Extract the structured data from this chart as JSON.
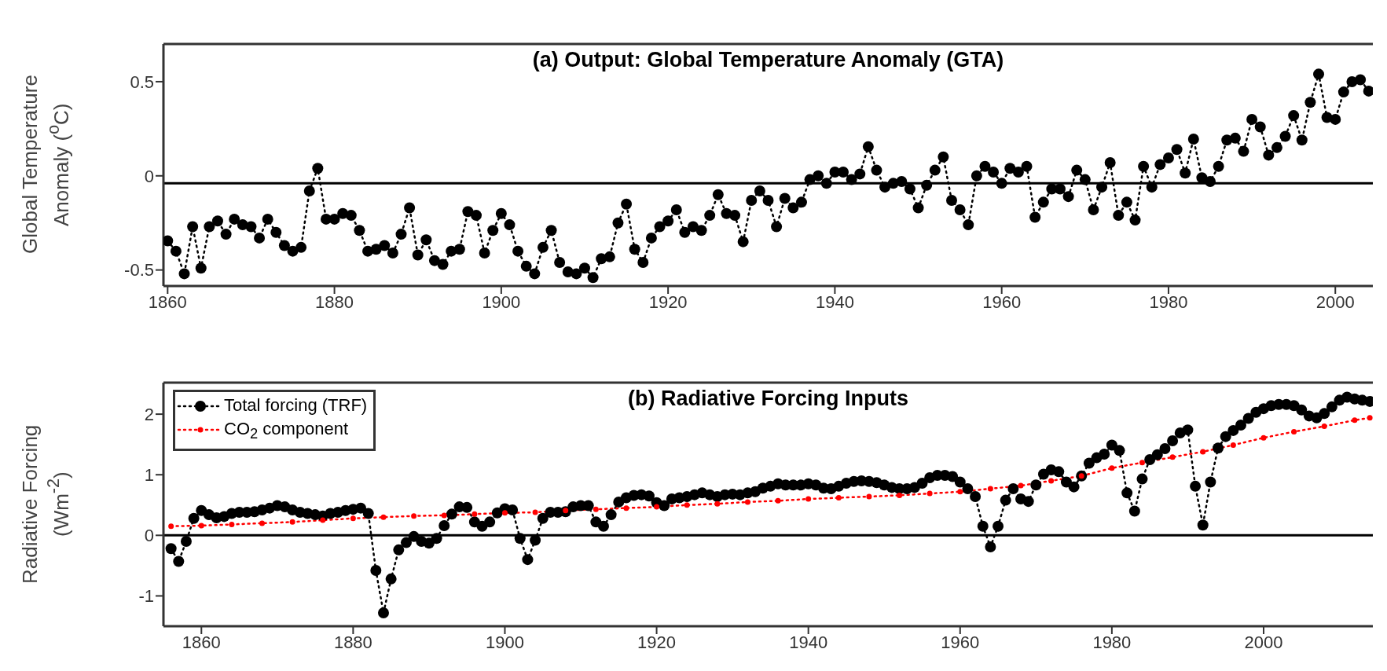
{
  "chart_data": [
    {
      "type": "line",
      "title": "(a) Output: Global Temperature Anomaly (GTA)",
      "ylabel": "Global Temperature Anomaly ($^{o}$C)",
      "color": "#000000",
      "marker": "circle",
      "line_style": "dotted",
      "xlim": [
        1859.5,
        2004.5
      ],
      "xticks": [
        1860,
        1880,
        1900,
        1920,
        1940,
        1960,
        1980,
        2000
      ],
      "ylim": [
        -0.585,
        0.7
      ],
      "yticks": [
        -0.5,
        0,
        0.5
      ],
      "legend": false,
      "ref_lines": [
        {
          "axis": "y",
          "value": -0.04,
          "color": "#000000"
        }
      ],
      "x": [
        1860,
        1861,
        1862,
        1863,
        1864,
        1865,
        1866,
        1867,
        1868,
        1869,
        1870,
        1871,
        1872,
        1873,
        1874,
        1875,
        1876,
        1877,
        1878,
        1879,
        1880,
        1881,
        1882,
        1883,
        1884,
        1885,
        1886,
        1887,
        1888,
        1889,
        1890,
        1891,
        1892,
        1893,
        1894,
        1895,
        1896,
        1897,
        1898,
        1899,
        1900,
        1901,
        1902,
        1903,
        1904,
        1905,
        1906,
        1907,
        1908,
        1909,
        1910,
        1911,
        1912,
        1913,
        1914,
        1915,
        1916,
        1917,
        1918,
        1919,
        1920,
        1921,
        1922,
        1923,
        1924,
        1925,
        1926,
        1927,
        1928,
        1929,
        1930,
        1931,
        1932,
        1933,
        1934,
        1935,
        1936,
        1937,
        1938,
        1939,
        1940,
        1941,
        1942,
        1943,
        1944,
        1945,
        1946,
        1947,
        1948,
        1949,
        1950,
        1951,
        1952,
        1953,
        1954,
        1955,
        1956,
        1957,
        1958,
        1959,
        1960,
        1961,
        1962,
        1963,
        1964,
        1965,
        1966,
        1967,
        1968,
        1969,
        1970,
        1971,
        1972,
        1973,
        1974,
        1975,
        1976,
        1977,
        1978,
        1979,
        1980,
        1981,
        1982,
        1983,
        1984,
        1985,
        1986,
        1987,
        1988,
        1989,
        1990,
        1991,
        1992,
        1993,
        1994,
        1995,
        1996,
        1997,
        1998,
        1999,
        2000,
        2001,
        2002,
        2003,
        2004
      ],
      "values": [
        -0.345,
        -0.4,
        -0.52,
        -0.27,
        -0.49,
        -0.27,
        -0.24,
        -0.31,
        -0.23,
        -0.26,
        -0.27,
        -0.33,
        -0.23,
        -0.3,
        -0.37,
        -0.4,
        -0.38,
        -0.08,
        0.04,
        -0.23,
        -0.23,
        -0.2,
        -0.21,
        -0.29,
        -0.4,
        -0.39,
        -0.37,
        -0.41,
        -0.31,
        -0.17,
        -0.42,
        -0.34,
        -0.45,
        -0.47,
        -0.4,
        -0.39,
        -0.19,
        -0.21,
        -0.41,
        -0.29,
        -0.2,
        -0.26,
        -0.4,
        -0.48,
        -0.52,
        -0.38,
        -0.29,
        -0.46,
        -0.51,
        -0.52,
        -0.49,
        -0.54,
        -0.44,
        -0.43,
        -0.25,
        -0.15,
        -0.39,
        -0.46,
        -0.33,
        -0.27,
        -0.24,
        -0.18,
        -0.3,
        -0.27,
        -0.29,
        -0.21,
        -0.1,
        -0.2,
        -0.21,
        -0.35,
        -0.13,
        -0.08,
        -0.13,
        -0.27,
        -0.12,
        -0.17,
        -0.14,
        -0.02,
        0.0,
        -0.04,
        0.02,
        0.02,
        -0.02,
        0.01,
        0.155,
        0.03,
        -0.06,
        -0.04,
        -0.03,
        -0.07,
        -0.17,
        -0.05,
        0.03,
        0.1,
        -0.13,
        -0.18,
        -0.26,
        0.0,
        0.05,
        0.02,
        -0.04,
        0.04,
        0.02,
        0.05,
        -0.22,
        -0.14,
        -0.07,
        -0.07,
        -0.11,
        0.03,
        -0.02,
        -0.18,
        -0.06,
        0.07,
        -0.21,
        -0.14,
        -0.235,
        0.05,
        -0.06,
        0.06,
        0.095,
        0.14,
        0.015,
        0.195,
        -0.01,
        -0.03,
        0.05,
        0.19,
        0.2,
        0.13,
        0.3,
        0.26,
        0.11,
        0.15,
        0.21,
        0.32,
        0.19,
        0.39,
        0.54,
        0.31,
        0.3,
        0.445,
        0.5,
        0.51,
        0.45
      ]
    },
    {
      "type": "line",
      "title": "(b) Radiative Forcing Inputs",
      "ylabel": "Radiative Forcing (Wm$^{-2}$)",
      "marker": "circle",
      "line_style": "dotted",
      "xlim": [
        1855,
        2014.4
      ],
      "xticks": [
        1860,
        1880,
        1900,
        1920,
        1940,
        1960,
        1980,
        2000
      ],
      "ylim": [
        -1.5,
        2.52
      ],
      "yticks": [
        -1,
        0,
        1,
        2
      ],
      "legend": "top left",
      "ref_lines": [
        {
          "axis": "y",
          "value": 0,
          "color": "#000000"
        }
      ],
      "series": [
        {
          "name": "Total forcing (TRF)",
          "color": "#000000",
          "x": [
            1856,
            1857,
            1858,
            1859,
            1860,
            1861,
            1862,
            1863,
            1864,
            1865,
            1866,
            1867,
            1868,
            1869,
            1870,
            1871,
            1872,
            1873,
            1874,
            1875,
            1876,
            1877,
            1878,
            1879,
            1880,
            1881,
            1882,
            1883,
            1884,
            1885,
            1886,
            1887,
            1888,
            1889,
            1890,
            1891,
            1892,
            1893,
            1894,
            1895,
            1896,
            1897,
            1898,
            1899,
            1900,
            1901,
            1902,
            1903,
            1904,
            1905,
            1906,
            1907,
            1908,
            1909,
            1910,
            1911,
            1912,
            1913,
            1914,
            1915,
            1916,
            1917,
            1918,
            1919,
            1920,
            1921,
            1922,
            1923,
            1924,
            1925,
            1926,
            1927,
            1928,
            1929,
            1930,
            1931,
            1932,
            1933,
            1934,
            1935,
            1936,
            1937,
            1938,
            1939,
            1940,
            1941,
            1942,
            1943,
            1944,
            1945,
            1946,
            1947,
            1948,
            1949,
            1950,
            1951,
            1952,
            1953,
            1954,
            1955,
            1956,
            1957,
            1958,
            1959,
            1960,
            1961,
            1962,
            1963,
            1964,
            1965,
            1966,
            1967,
            1968,
            1969,
            1970,
            1971,
            1972,
            1973,
            1974,
            1975,
            1976,
            1977,
            1978,
            1979,
            1980,
            1981,
            1982,
            1983,
            1984,
            1985,
            1986,
            1987,
            1988,
            1989,
            1990,
            1991,
            1992,
            1993,
            1994,
            1995,
            1996,
            1997,
            1998,
            1999,
            2000,
            2001,
            2002,
            2003,
            2004,
            2005,
            2006,
            2007,
            2008,
            2009,
            2010,
            2011,
            2012,
            2013,
            2014
          ],
          "values": [
            -0.22,
            -0.43,
            -0.1,
            0.28,
            0.41,
            0.34,
            0.29,
            0.31,
            0.36,
            0.38,
            0.38,
            0.39,
            0.42,
            0.45,
            0.49,
            0.47,
            0.42,
            0.38,
            0.36,
            0.34,
            0.32,
            0.36,
            0.38,
            0.41,
            0.43,
            0.45,
            0.36,
            -0.58,
            -1.28,
            -0.72,
            -0.24,
            -0.12,
            -0.02,
            -0.1,
            -0.13,
            -0.05,
            0.16,
            0.35,
            0.47,
            0.46,
            0.22,
            0.15,
            0.22,
            0.37,
            0.44,
            0.42,
            -0.05,
            -0.4,
            -0.08,
            0.28,
            0.38,
            0.38,
            0.39,
            0.47,
            0.49,
            0.49,
            0.22,
            0.15,
            0.34,
            0.55,
            0.62,
            0.66,
            0.67,
            0.65,
            0.54,
            0.49,
            0.6,
            0.62,
            0.64,
            0.67,
            0.7,
            0.67,
            0.64,
            0.67,
            0.68,
            0.67,
            0.7,
            0.72,
            0.78,
            0.81,
            0.85,
            0.83,
            0.83,
            0.83,
            0.85,
            0.83,
            0.78,
            0.77,
            0.81,
            0.86,
            0.89,
            0.9,
            0.89,
            0.87,
            0.83,
            0.79,
            0.77,
            0.77,
            0.79,
            0.86,
            0.95,
            0.99,
            0.99,
            0.97,
            0.88,
            0.77,
            0.64,
            0.15,
            -0.19,
            0.15,
            0.58,
            0.77,
            0.6,
            0.56,
            0.83,
            1.01,
            1.08,
            1.05,
            0.88,
            0.8,
            0.98,
            1.19,
            1.28,
            1.34,
            1.49,
            1.4,
            0.7,
            0.4,
            0.93,
            1.25,
            1.33,
            1.43,
            1.56,
            1.69,
            1.74,
            0.81,
            0.17,
            0.88,
            1.44,
            1.63,
            1.73,
            1.82,
            1.93,
            2.03,
            2.09,
            2.14,
            2.16,
            2.16,
            2.14,
            2.07,
            1.97,
            1.94,
            2.01,
            2.12,
            2.23,
            2.28,
            2.25,
            2.23,
            2.21
          ]
        },
        {
          "name": "CO$_{2}$ component",
          "color": "#ff0000",
          "x": [
            1856,
            1860,
            1864,
            1868,
            1872,
            1876,
            1880,
            1884,
            1888,
            1892,
            1896,
            1900,
            1904,
            1908,
            1912,
            1916,
            1920,
            1924,
            1928,
            1932,
            1936,
            1940,
            1944,
            1948,
            1952,
            1956,
            1960,
            1964,
            1968,
            1972,
            1976,
            1980,
            1984,
            1988,
            1992,
            1996,
            2000,
            2004,
            2008,
            2012,
            2014
          ],
          "values": [
            0.15,
            0.16,
            0.18,
            0.2,
            0.22,
            0.25,
            0.28,
            0.3,
            0.32,
            0.33,
            0.35,
            0.37,
            0.38,
            0.41,
            0.43,
            0.45,
            0.47,
            0.5,
            0.52,
            0.55,
            0.57,
            0.6,
            0.62,
            0.64,
            0.66,
            0.69,
            0.72,
            0.77,
            0.82,
            0.9,
            0.98,
            1.11,
            1.2,
            1.29,
            1.38,
            1.49,
            1.61,
            1.71,
            1.8,
            1.9,
            1.94
          ]
        }
      ]
    }
  ]
}
